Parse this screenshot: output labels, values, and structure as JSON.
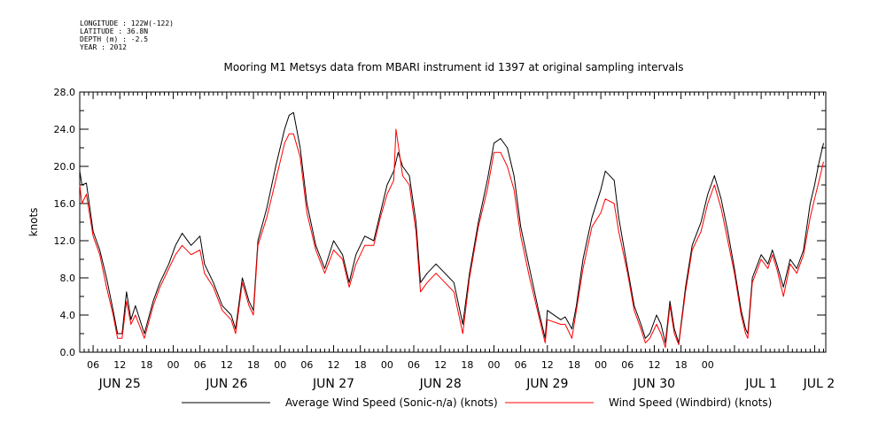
{
  "meta": {
    "longitude": "LONGITUDE : 122W(-122)",
    "latitude": "LATITUDE : 36.8N",
    "depth": "DEPTH (m) : -2.5",
    "year": "YEAR : 2012"
  },
  "chart_data": {
    "type": "line",
    "title": "Mooring M1 Metsys data from MBARI instrument id 1397 at original sampling intervals",
    "ylabel": "knots",
    "xlabel": "",
    "ylim": [
      0,
      28
    ],
    "yticks": [
      0,
      4,
      8,
      12,
      16,
      20,
      24,
      28
    ],
    "ytick_labels": [
      "0.0",
      "4.0",
      "8.0",
      "12.0",
      "16.0",
      "20.0",
      "24.0",
      "28.0"
    ],
    "xlim_hours": [
      0,
      141
    ],
    "x_hour_ticks": [
      {
        "h": 3,
        "label": "06"
      },
      {
        "h": 9,
        "label": "12"
      },
      {
        "h": 15,
        "label": "18"
      },
      {
        "h": 21,
        "label": "00"
      },
      {
        "h": 27,
        "label": "06"
      },
      {
        "h": 33,
        "label": "12"
      },
      {
        "h": 39,
        "label": "18"
      },
      {
        "h": 45,
        "label": "00"
      },
      {
        "h": 51,
        "label": "06"
      },
      {
        "h": 57,
        "label": "12"
      },
      {
        "h": 63,
        "label": "18"
      },
      {
        "h": 69,
        "label": "00"
      },
      {
        "h": 75,
        "label": "06"
      },
      {
        "h": 81,
        "label": "12"
      },
      {
        "h": 87,
        "label": "18"
      },
      {
        "h": 93,
        "label": "00"
      },
      {
        "h": 99,
        "label": "06"
      },
      {
        "h": 105,
        "label": "12"
      },
      {
        "h": 111,
        "label": "18"
      },
      {
        "h": 117,
        "label": "00"
      },
      {
        "h": 123,
        "label": "06"
      },
      {
        "h": 129,
        "label": "12"
      },
      {
        "h": 135,
        "label": "18"
      },
      {
        "h": 141,
        "label": "00"
      }
    ],
    "x_day_labels": [
      {
        "h": 9,
        "label": "JUN 25"
      },
      {
        "h": 33,
        "label": "JUN 26"
      },
      {
        "h": 57,
        "label": "JUN 27"
      },
      {
        "h": 81,
        "label": "JUN 28"
      },
      {
        "h": 105,
        "label": "JUN 29"
      },
      {
        "h": 129,
        "label": "JUN 30"
      },
      {
        "h": 153,
        "label": "JUL  1"
      },
      {
        "h": 166,
        "label": "JUL  2"
      }
    ],
    "grid": false,
    "legend_position": "bottom",
    "series": [
      {
        "name": "Average Wind Speed (Sonic-n/a) (knots)",
        "color": "#000000",
        "points": [
          [
            0,
            19.5
          ],
          [
            0.5,
            18.0
          ],
          [
            1.5,
            18.2
          ],
          [
            3,
            13.0
          ],
          [
            4.5,
            11.0
          ],
          [
            6,
            8.0
          ],
          [
            7.5,
            4.5
          ],
          [
            8.5,
            2.0
          ],
          [
            9.5,
            2.0
          ],
          [
            10.5,
            6.5
          ],
          [
            11.5,
            3.5
          ],
          [
            12.5,
            5.0
          ],
          [
            14.5,
            2.0
          ],
          [
            16.5,
            5.5
          ],
          [
            18,
            7.5
          ],
          [
            20,
            9.5
          ],
          [
            21.5,
            11.5
          ],
          [
            23,
            12.8
          ],
          [
            25,
            11.5
          ],
          [
            27,
            12.5
          ],
          [
            28,
            9.5
          ],
          [
            30,
            7.5
          ],
          [
            32,
            5.0
          ],
          [
            34,
            4.0
          ],
          [
            35,
            2.5
          ],
          [
            36.5,
            8.0
          ],
          [
            38,
            5.5
          ],
          [
            39,
            4.5
          ],
          [
            40,
            12.0
          ],
          [
            42,
            15.5
          ],
          [
            44,
            20.0
          ],
          [
            46,
            24.0
          ],
          [
            47,
            25.5
          ],
          [
            48,
            25.8
          ],
          [
            49.5,
            22.0
          ],
          [
            51,
            16.0
          ],
          [
            53,
            11.5
          ],
          [
            55,
            9.0
          ],
          [
            57,
            12.0
          ],
          [
            59,
            10.5
          ],
          [
            60.5,
            7.5
          ],
          [
            62,
            10.5
          ],
          [
            64,
            12.5
          ],
          [
            66,
            12.0
          ],
          [
            67.5,
            15.0
          ],
          [
            69,
            18.0
          ],
          [
            70.5,
            19.5
          ],
          [
            71.5,
            21.5
          ],
          [
            72.5,
            20.0
          ],
          [
            74,
            19.0
          ],
          [
            75.5,
            14.0
          ],
          [
            76.5,
            7.5
          ],
          [
            78,
            8.5
          ],
          [
            80,
            9.5
          ],
          [
            82,
            8.5
          ],
          [
            84,
            7.5
          ],
          [
            86,
            3.0
          ],
          [
            87.5,
            8.5
          ],
          [
            89.5,
            14.0
          ],
          [
            91.5,
            18.5
          ],
          [
            93,
            22.5
          ],
          [
            94.5,
            23.0
          ],
          [
            96,
            22.0
          ],
          [
            97.5,
            19.0
          ],
          [
            99,
            13.5
          ],
          [
            101,
            9.0
          ],
          [
            103,
            4.5
          ],
          [
            104.5,
            1.5
          ],
          [
            105,
            4.5
          ],
          [
            108,
            3.5
          ],
          [
            109,
            3.8
          ],
          [
            110.5,
            2.5
          ],
          [
            111.5,
            5.0
          ],
          [
            113,
            10.0
          ],
          [
            115,
            14.5
          ],
          [
            117,
            17.5
          ],
          [
            118,
            19.5
          ],
          [
            120,
            18.5
          ],
          [
            121,
            14.5
          ],
          [
            123,
            9.0
          ],
          [
            124.5,
            5.0
          ],
          [
            126,
            3.0
          ],
          [
            127,
            1.5
          ],
          [
            128,
            2.0
          ],
          [
            129.5,
            4.0
          ],
          [
            130.5,
            3.0
          ],
          [
            131.5,
            1.0
          ],
          [
            132.5,
            5.5
          ],
          [
            133.5,
            2.5
          ],
          [
            134.5,
            1.0
          ],
          [
            136,
            7.0
          ],
          [
            137.5,
            11.5
          ],
          [
            139.5,
            14.0
          ],
          [
            141,
            17.0
          ],
          [
            142.5,
            19.0
          ],
          [
            144,
            16.5
          ],
          [
            145.5,
            13.0
          ],
          [
            147,
            9.0
          ],
          [
            148.5,
            4.5
          ],
          [
            149.5,
            2.5
          ],
          [
            150,
            2.0
          ],
          [
            151,
            8.0
          ],
          [
            153,
            10.5
          ],
          [
            154.5,
            9.5
          ],
          [
            155.5,
            11.0
          ],
          [
            156.5,
            9.5
          ],
          [
            158,
            7.0
          ],
          [
            159.5,
            10.0
          ],
          [
            161,
            9.0
          ],
          [
            162.5,
            11.0
          ],
          [
            164,
            16.0
          ],
          [
            165,
            18.0
          ],
          [
            166,
            20.5
          ],
          [
            167,
            22.5
          ]
        ]
      },
      {
        "name": "Wind Speed (Windbird) (knots)",
        "color": "#ff0000",
        "points": [
          [
            0,
            18.0
          ],
          [
            0.5,
            16.0
          ],
          [
            1.5,
            17.0
          ],
          [
            3,
            12.5
          ],
          [
            4.5,
            10.5
          ],
          [
            6,
            7.0
          ],
          [
            7.5,
            4.0
          ],
          [
            8.5,
            1.5
          ],
          [
            9.5,
            1.5
          ],
          [
            10.5,
            5.5
          ],
          [
            11.5,
            3.0
          ],
          [
            12.5,
            4.0
          ],
          [
            14.5,
            1.5
          ],
          [
            16.5,
            5.0
          ],
          [
            18,
            7.0
          ],
          [
            20,
            9.0
          ],
          [
            21.5,
            10.5
          ],
          [
            23,
            11.5
          ],
          [
            25,
            10.5
          ],
          [
            27,
            11.0
          ],
          [
            28,
            8.5
          ],
          [
            30,
            7.0
          ],
          [
            32,
            4.5
          ],
          [
            34,
            3.5
          ],
          [
            35,
            2.0
          ],
          [
            36.5,
            7.5
          ],
          [
            38,
            5.0
          ],
          [
            39,
            4.0
          ],
          [
            40,
            11.5
          ],
          [
            42,
            14.5
          ],
          [
            44,
            18.5
          ],
          [
            46,
            22.5
          ],
          [
            47,
            23.5
          ],
          [
            48,
            23.5
          ],
          [
            49.5,
            21.0
          ],
          [
            51,
            15.0
          ],
          [
            53,
            11.0
          ],
          [
            55,
            8.5
          ],
          [
            57,
            11.0
          ],
          [
            59,
            10.0
          ],
          [
            60.5,
            7.0
          ],
          [
            62,
            9.5
          ],
          [
            64,
            11.5
          ],
          [
            66,
            11.5
          ],
          [
            67.5,
            14.5
          ],
          [
            69,
            17.0
          ],
          [
            70.5,
            18.5
          ],
          [
            71,
            24.0
          ],
          [
            72.5,
            19.0
          ],
          [
            74,
            18.0
          ],
          [
            75.5,
            13.0
          ],
          [
            76.5,
            6.5
          ],
          [
            78,
            7.5
          ],
          [
            80,
            8.5
          ],
          [
            82,
            7.5
          ],
          [
            84,
            6.5
          ],
          [
            86,
            2.0
          ],
          [
            87.5,
            8.0
          ],
          [
            89.5,
            13.5
          ],
          [
            91.5,
            17.5
          ],
          [
            93,
            21.5
          ],
          [
            94.5,
            21.5
          ],
          [
            96,
            20.0
          ],
          [
            97.5,
            17.5
          ],
          [
            99,
            12.5
          ],
          [
            101,
            8.0
          ],
          [
            103,
            4.0
          ],
          [
            104.5,
            1.0
          ],
          [
            105,
            3.5
          ],
          [
            108,
            3.0
          ],
          [
            109,
            3.0
          ],
          [
            110.5,
            1.5
          ],
          [
            111.5,
            4.5
          ],
          [
            113,
            9.0
          ],
          [
            115,
            13.5
          ],
          [
            117,
            15.0
          ],
          [
            118,
            16.5
          ],
          [
            120,
            16.0
          ],
          [
            121,
            13.0
          ],
          [
            123,
            8.5
          ],
          [
            124.5,
            4.5
          ],
          [
            126,
            2.5
          ],
          [
            127,
            1.0
          ],
          [
            128,
            1.5
          ],
          [
            129.5,
            3.0
          ],
          [
            130.5,
            2.0
          ],
          [
            131.5,
            0.5
          ],
          [
            132.5,
            5.0
          ],
          [
            133.5,
            2.0
          ],
          [
            134.5,
            0.8
          ],
          [
            136,
            6.5
          ],
          [
            137.5,
            11.0
          ],
          [
            139.5,
            13.0
          ],
          [
            141,
            16.0
          ],
          [
            142.5,
            18.0
          ],
          [
            144,
            15.5
          ],
          [
            145.5,
            12.0
          ],
          [
            147,
            8.5
          ],
          [
            148.5,
            4.0
          ],
          [
            149.5,
            2.0
          ],
          [
            150,
            1.5
          ],
          [
            151,
            7.5
          ],
          [
            153,
            10.0
          ],
          [
            154.5,
            9.0
          ],
          [
            155.5,
            10.5
          ],
          [
            156.5,
            9.0
          ],
          [
            158,
            6.0
          ],
          [
            159.5,
            9.5
          ],
          [
            161,
            8.5
          ],
          [
            162.5,
            10.5
          ],
          [
            164,
            14.5
          ],
          [
            165,
            16.5
          ],
          [
            166,
            18.5
          ],
          [
            167,
            20.5
          ]
        ]
      }
    ]
  }
}
